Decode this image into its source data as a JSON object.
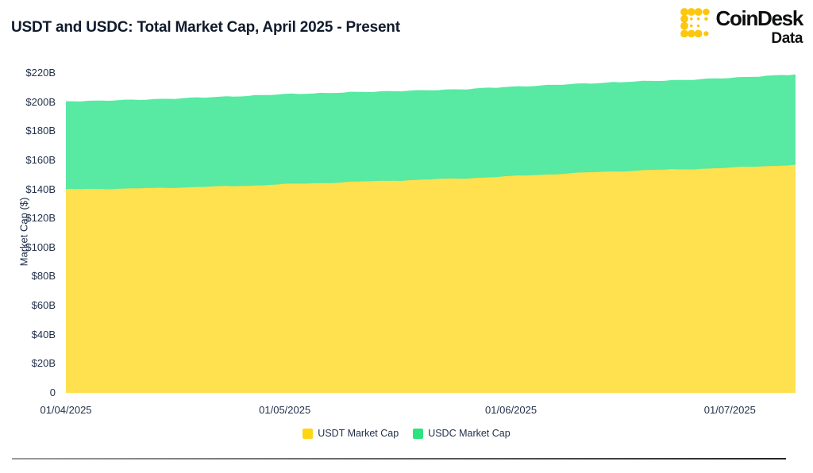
{
  "header": {
    "title": "USDT and USDC: Total Market Cap, April 2025 - Present"
  },
  "brand": {
    "name": "CoinDesk",
    "sub": "Data",
    "logo_color": "#fcc70e",
    "text_color": "#0e0f11"
  },
  "chart_data": {
    "type": "area",
    "stacked": true,
    "title": "USDT and USDC: Total Market Cap, April 2025 - Present",
    "xlabel": "",
    "ylabel": "Market Cap ($)",
    "ylim": [
      0,
      220
    ],
    "grid": false,
    "legend_position": "bottom",
    "x_domain_days": [
      0,
      100
    ],
    "x_ticks": [
      {
        "label": "01/04/2025",
        "day": 0
      },
      {
        "label": "01/05/2025",
        "day": 30
      },
      {
        "label": "01/06/2025",
        "day": 61
      },
      {
        "label": "01/07/2025",
        "day": 91
      }
    ],
    "y_ticks": [
      {
        "label": "$220B",
        "value": 220
      },
      {
        "label": "$200B",
        "value": 200
      },
      {
        "label": "$180B",
        "value": 180
      },
      {
        "label": "$160B",
        "value": 160
      },
      {
        "label": "$140B",
        "value": 140
      },
      {
        "label": "$120B",
        "value": 120
      },
      {
        "label": "$100B",
        "value": 100
      },
      {
        "label": "$80B",
        "value": 80
      },
      {
        "label": "$60B",
        "value": 60
      },
      {
        "label": "$40B",
        "value": 40
      },
      {
        "label": "$20B",
        "value": 20
      },
      {
        "label": "0",
        "value": 0
      }
    ],
    "series": [
      {
        "name": "USDT Market Cap",
        "color": "#ffd514",
        "fill": "#ffe04e",
        "unit": "billion USD",
        "points": [
          [
            0,
            140.0
          ],
          [
            5,
            140.3
          ],
          [
            10,
            140.6
          ],
          [
            15,
            141.2
          ],
          [
            20,
            141.8
          ],
          [
            25,
            142.5
          ],
          [
            30,
            143.5
          ],
          [
            35,
            144.3
          ],
          [
            40,
            145.2
          ],
          [
            45,
            146.0
          ],
          [
            50,
            146.8
          ],
          [
            55,
            147.6
          ],
          [
            61,
            149.0
          ],
          [
            65,
            150.0
          ],
          [
            70,
            151.2
          ],
          [
            75,
            152.3
          ],
          [
            80,
            153.2
          ],
          [
            85,
            153.8
          ],
          [
            91,
            154.8
          ],
          [
            95,
            155.8
          ],
          [
            100,
            156.8
          ]
        ]
      },
      {
        "name": "USDC Market Cap",
        "color": "#2de37d",
        "fill": "#58e9a3",
        "unit": "billion USD",
        "points": [
          [
            0,
            60.5
          ],
          [
            10,
            61.0
          ],
          [
            20,
            61.6
          ],
          [
            30,
            62.0
          ],
          [
            40,
            61.7
          ],
          [
            50,
            61.4
          ],
          [
            61,
            61.5
          ],
          [
            70,
            61.3
          ],
          [
            80,
            61.3
          ],
          [
            91,
            61.8
          ],
          [
            100,
            62.2
          ]
        ]
      }
    ]
  }
}
